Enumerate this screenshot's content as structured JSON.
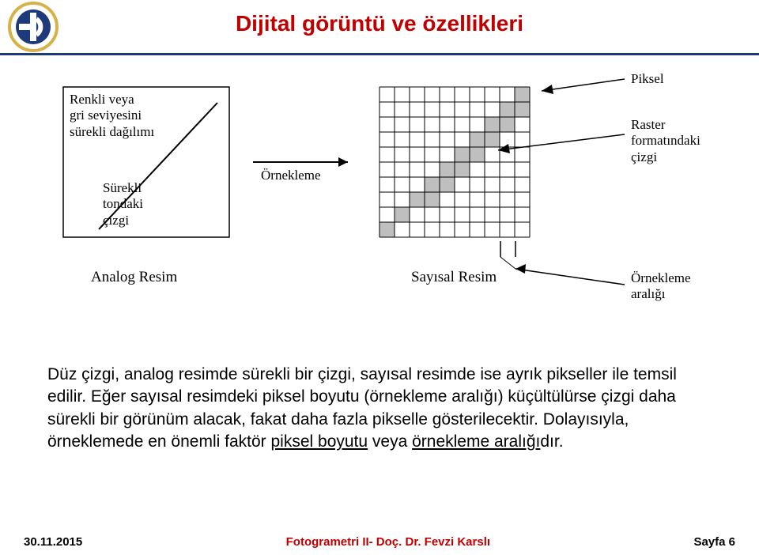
{
  "colors": {
    "title": "#c00000",
    "header_rule": "#1f3a7a",
    "logo_outer": "#d6b24a",
    "logo_inner": "#1f3a7a",
    "footer_center": "#c00000",
    "text": "#000000",
    "grid_fill": "#bfbfbf"
  },
  "title": "Dijital görüntü ve özellikleri",
  "figure": {
    "analog": {
      "label_multiline": "Renkli veya\ngri seviyesini\nsürekli dağılımı",
      "line_label": "Sürekli\ntondaki\nçizgi",
      "caption": "Analog  Resim",
      "sampling_arrow": "Örnekleme"
    },
    "digital": {
      "pixel_label": "Piksel",
      "raster_label": "Raster\nformatındaki\nçizgi",
      "caption": "Sayısal  Resim",
      "interval_label": "Örnekleme\naralığı",
      "grid": {
        "cols": 10,
        "rows": 10,
        "filled_cells": [
          [
            9,
            0
          ],
          [
            8,
            1
          ],
          [
            7,
            2
          ],
          [
            7,
            3
          ],
          [
            6,
            3
          ],
          [
            6,
            4
          ],
          [
            5,
            4
          ],
          [
            5,
            5
          ],
          [
            4,
            5
          ],
          [
            4,
            6
          ],
          [
            3,
            6
          ],
          [
            3,
            7
          ],
          [
            2,
            7
          ],
          [
            2,
            8
          ],
          [
            1,
            8
          ],
          [
            1,
            9
          ],
          [
            0,
            9
          ]
        ]
      }
    }
  },
  "paragraph": {
    "p1": "Düz çizgi, analog resimde sürekli bir çizgi, sayısal resimde ise ayrık pikseller ile temsil edilir. Eğer sayısal resimdeki piksel boyutu (örnekleme aralığı) küçültülürse çizgi daha sürekli bir görünüm alacak, fakat daha fazla pikselle gösterilecektir. Dolayısıyla, örneklemede en önemli faktör ",
    "u1": "piksel boyutu",
    "p2": " veya ",
    "u2": "örnekleme aralığı",
    "p3": "dır."
  },
  "footer": {
    "left": "30.11.2015",
    "center": "Fotogrametri II- Doç. Dr. Fevzi Karslı",
    "right": "Sayfa 6"
  }
}
